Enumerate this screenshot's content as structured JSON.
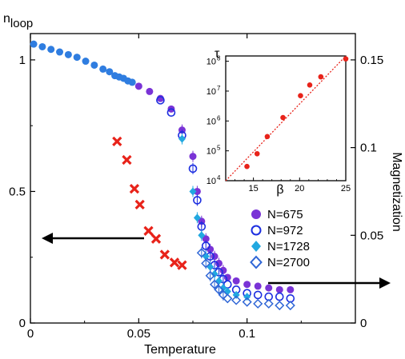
{
  "chart_data": [
    {
      "type": "scatter",
      "title": "",
      "xlabel": "Temperature",
      "ylabel_left": "n_loop",
      "ylabel_left_main": "n",
      "ylabel_left_sub": "loop",
      "ylabel_right": "Magnetization",
      "xlim": [
        0,
        0.15
      ],
      "ylim_left": [
        0,
        1.1
      ],
      "ylim_right": [
        0,
        0.165
      ],
      "x_ticks": [
        "0",
        "0.05",
        "0.1"
      ],
      "x_tick_values": [
        0,
        0.05,
        0.1
      ],
      "y_left_ticks": [
        "0",
        "0.5",
        "1"
      ],
      "y_left_tick_values": [
        0,
        0.5,
        1
      ],
      "y_right_ticks": [
        "0",
        "0.05",
        "0.1",
        "0.15"
      ],
      "y_right_tick_values": [
        0,
        0.05,
        0.1,
        0.15
      ],
      "legend_position": "right",
      "colors": {
        "nloop": "#e8231a",
        "n675": "#7a33d6",
        "n972": "#1c2ee0",
        "n1728": "#22a8e0",
        "n2700": "#2f66d6",
        "initial": "#2f7de0",
        "arrow": "#000000"
      },
      "series": [
        {
          "name": "",
          "key": "nloop",
          "axis": "left",
          "marker": "x",
          "x": [
            0.04,
            0.0445,
            0.048,
            0.0505,
            0.0545,
            0.058,
            0.062,
            0.0665,
            0.07
          ],
          "y": [
            0.69,
            0.62,
            0.51,
            0.45,
            0.35,
            0.32,
            0.26,
            0.23,
            0.22
          ]
        },
        {
          "name": "",
          "key": "initial",
          "axis": "left",
          "marker": "filled-circle",
          "x": [
            0.0015,
            0.0055,
            0.0095,
            0.0135,
            0.0175,
            0.0215,
            0.0255,
            0.0295,
            0.0335,
            0.0365,
            0.039,
            0.041,
            0.043,
            0.045,
            0.047
          ],
          "y": [
            1.06,
            1.05,
            1.04,
            1.03,
            1.02,
            1.01,
            0.995,
            0.98,
            0.965,
            0.955,
            0.94,
            0.935,
            0.93,
            0.92,
            0.915
          ]
        },
        {
          "name": "N=675",
          "key": "n675",
          "axis": "right",
          "marker": "filled-circle",
          "x": [
            0.05,
            0.055,
            0.06,
            0.065,
            0.07,
            0.075,
            0.077,
            0.079,
            0.081,
            0.083,
            0.085,
            0.087,
            0.089,
            0.091,
            0.095,
            0.1,
            0.105,
            0.11,
            0.115,
            0.12
          ],
          "y": [
            0.135,
            0.132,
            0.128,
            0.122,
            0.11,
            0.095,
            0.075,
            0.058,
            0.048,
            0.042,
            0.038,
            0.034,
            0.03,
            0.026,
            0.024,
            0.022,
            0.021,
            0.02,
            0.019,
            0.019
          ]
        },
        {
          "name": "N=972",
          "key": "n972",
          "axis": "right",
          "marker": "open-circle",
          "x": [
            0.06,
            0.065,
            0.07,
            0.075,
            0.077,
            0.079,
            0.081,
            0.083,
            0.085,
            0.087,
            0.089,
            0.091,
            0.095,
            0.1,
            0.105,
            0.11,
            0.115,
            0.12
          ],
          "y": [
            0.127,
            0.12,
            0.107,
            0.088,
            0.07,
            0.055,
            0.044,
            0.038,
            0.033,
            0.029,
            0.025,
            0.022,
            0.019,
            0.017,
            0.016,
            0.015,
            0.015,
            0.014
          ]
        },
        {
          "name": "N=1728",
          "key": "n1728",
          "axis": "right",
          "marker": "filled-diamond",
          "x": [
            0.07,
            0.075,
            0.077,
            0.079,
            0.081,
            0.083,
            0.085,
            0.087,
            0.089,
            0.091,
            0.095,
            0.1
          ],
          "y": [
            0.105,
            0.075,
            0.06,
            0.05,
            0.038,
            0.032,
            0.028,
            0.024,
            0.02,
            0.018,
            0.016,
            0.015
          ]
        },
        {
          "name": "N=2700",
          "key": "n2700",
          "axis": "right",
          "marker": "open-diamond",
          "x": [
            0.079,
            0.081,
            0.083,
            0.085,
            0.087,
            0.089,
            0.091,
            0.095,
            0.1,
            0.105,
            0.11,
            0.115,
            0.12
          ],
          "y": [
            0.04,
            0.034,
            0.027,
            0.022,
            0.019,
            0.016,
            0.014,
            0.013,
            0.012,
            0.011,
            0.011,
            0.01,
            0.01
          ]
        }
      ]
    },
    {
      "type": "scatter",
      "title": "",
      "xlabel": "β",
      "ylabel": "τ",
      "log_y": true,
      "xlim": [
        12,
        25
      ],
      "ylim": [
        10000,
        150000000
      ],
      "x_ticks": [
        "15",
        "20",
        "25"
      ],
      "x_tick_values": [
        15,
        20,
        25
      ],
      "y_ticks": [
        "10",
        "10",
        "10",
        "10",
        "10"
      ],
      "y_tick_exponents": [
        "4",
        "5",
        "6",
        "7",
        "8"
      ],
      "y_tick_values": [
        10000,
        100000,
        1000000,
        10000000,
        100000000
      ],
      "series": [
        {
          "name": "",
          "key": "tau",
          "marker": "filled-circle",
          "color": "#e8231a",
          "x": [
            14.3,
            15.4,
            16.5,
            18.2,
            20.1,
            21.1,
            22.3,
            25
          ],
          "y": [
            30000,
            80000,
            300000,
            1300000,
            7000000,
            16000000,
            30000000,
            120000000
          ]
        },
        {
          "name": "",
          "key": "fit",
          "marker": "dotted-line",
          "color": "#e8231a",
          "x": [
            12,
            25
          ],
          "y": [
            10000,
            150000000
          ]
        }
      ]
    }
  ]
}
